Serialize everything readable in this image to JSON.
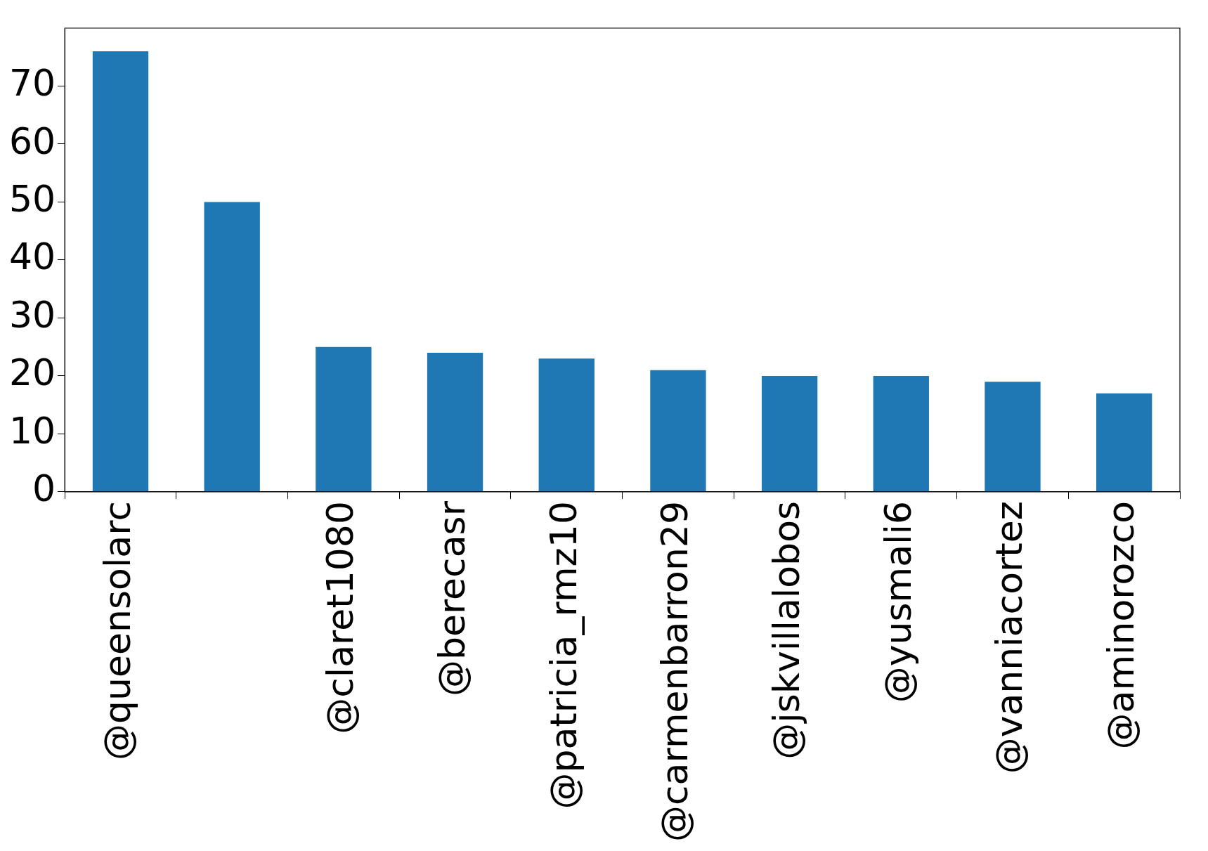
{
  "chart_data": {
    "type": "bar",
    "categories": [
      "@queensolarc",
      null,
      "@claret1080",
      "@berecasr",
      "@patricia_rmz10",
      "@carmenbarron29",
      "@jskvillalobos",
      "@yusmali6",
      "@vanniacortez",
      "@aminorozco"
    ],
    "values": [
      76,
      50,
      25,
      24,
      23,
      21,
      20,
      20,
      19,
      17
    ],
    "color": "#1f77b4",
    "ylim": [
      0,
      80
    ],
    "yticks": [
      0,
      10,
      20,
      30,
      40,
      50,
      60,
      70
    ],
    "grid": false,
    "legend": false
  }
}
